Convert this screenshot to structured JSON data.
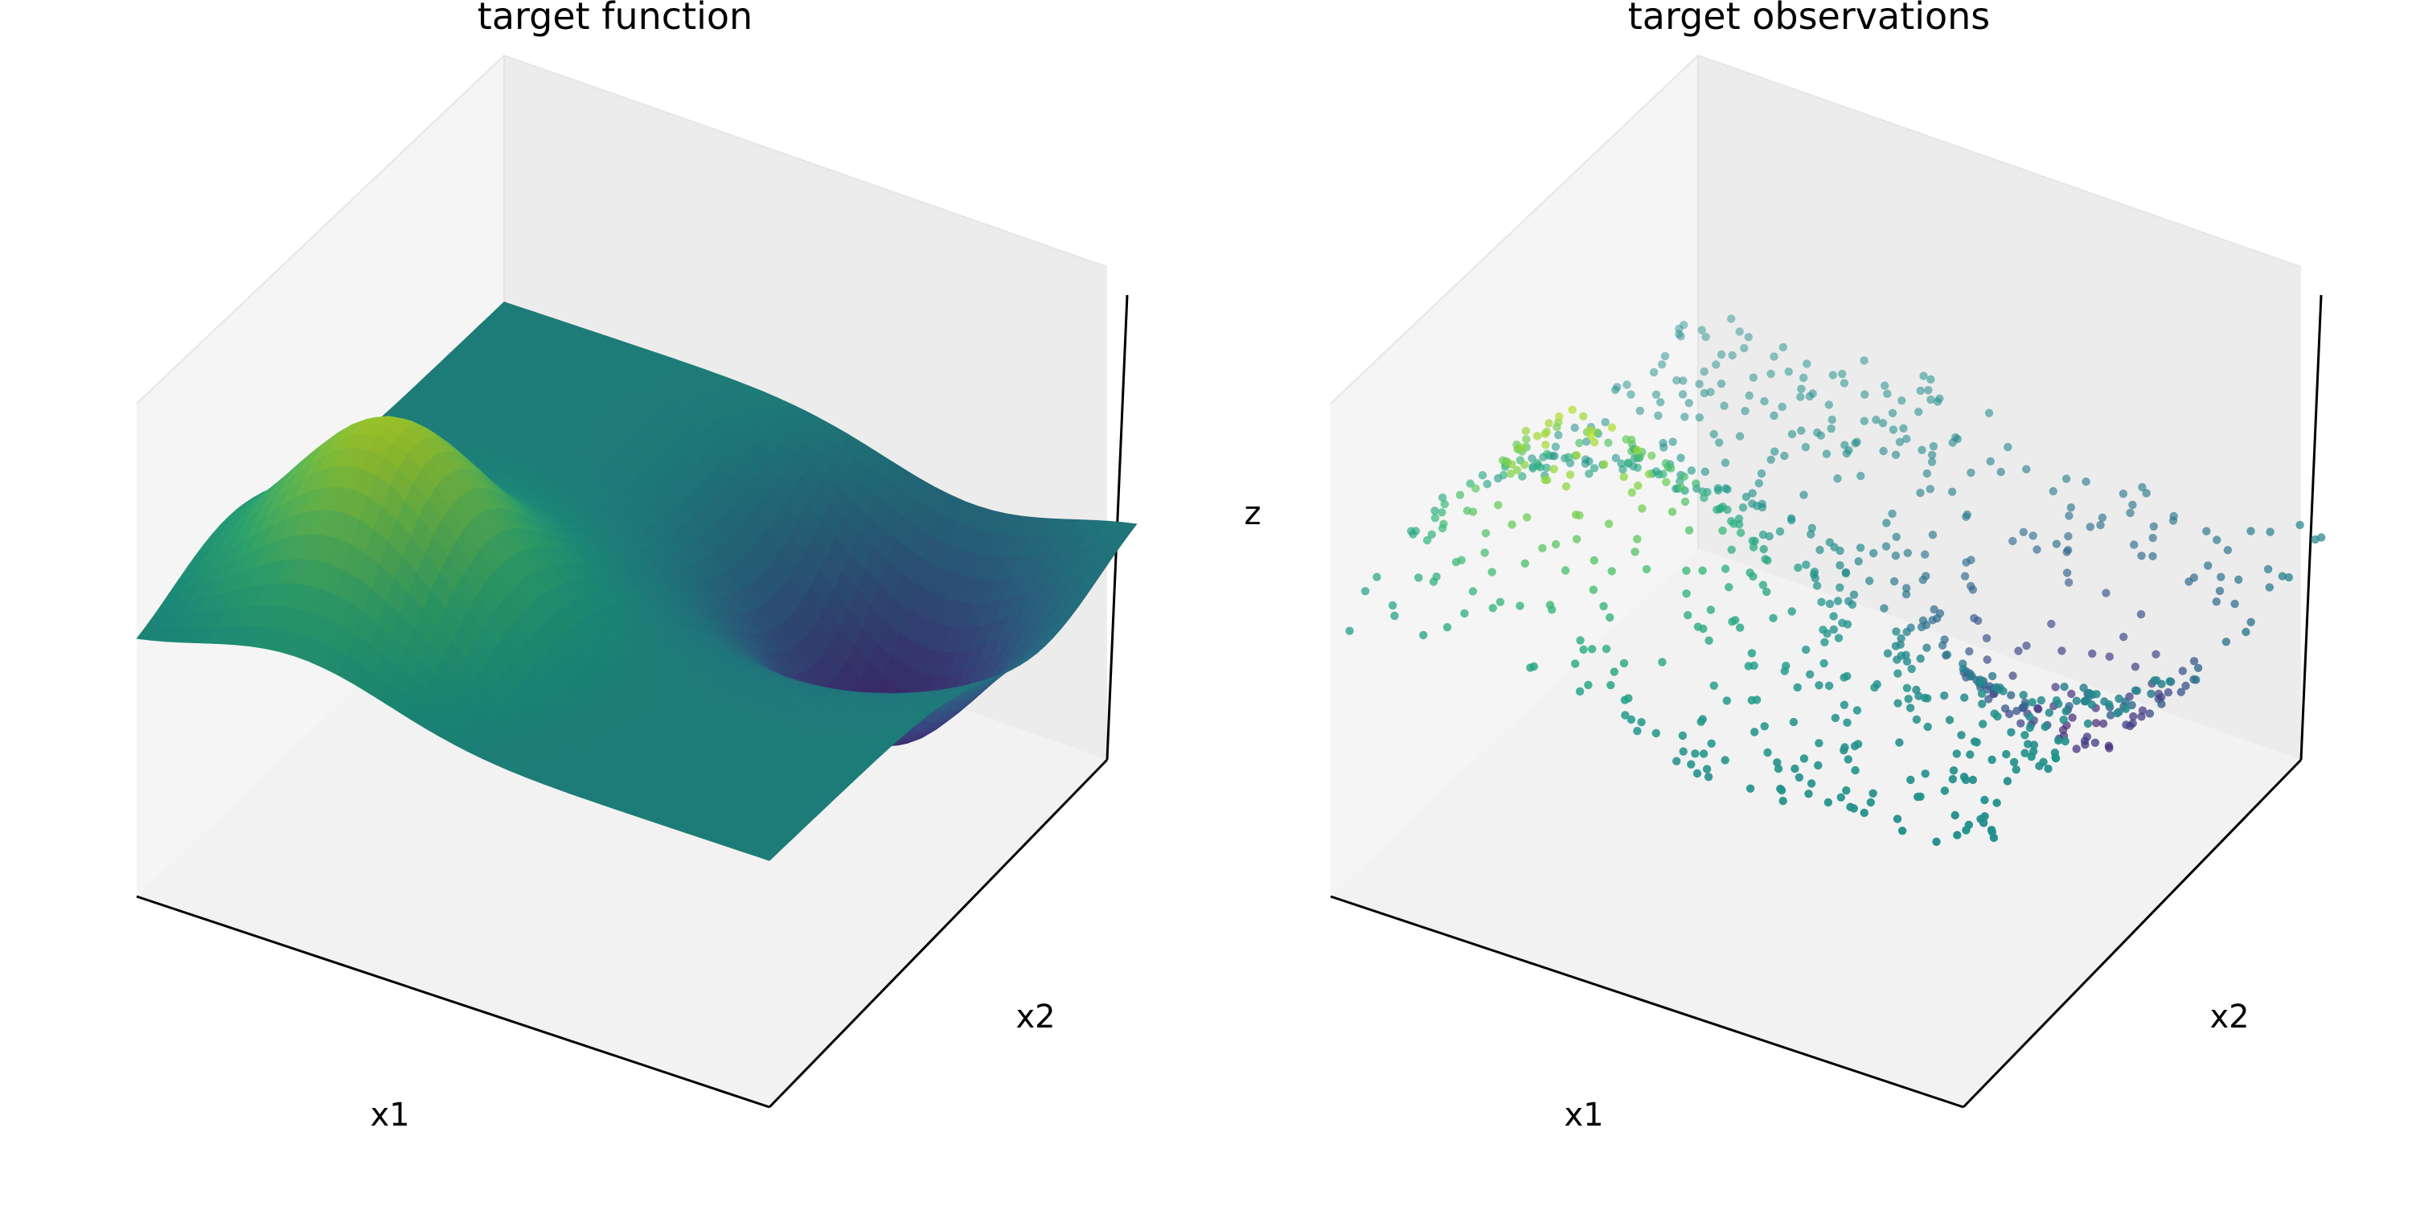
{
  "chart_data": [
    {
      "type": "surface",
      "title": "target function",
      "xlabel": "x1",
      "ylabel": "x2",
      "zlabel": "",
      "x_range": [
        -3,
        3
      ],
      "y_range": [
        -3,
        3
      ],
      "z_range": [
        -1.3,
        1.3
      ],
      "colormap": "viridis",
      "ticks": "hidden",
      "grid": false,
      "surface_features": [
        {
          "kind": "peak",
          "x1": -1.5,
          "x2": -1.5,
          "z": 1.0
        },
        {
          "kind": "trough",
          "x1": 1.5,
          "x2": 1.5,
          "z": -1.0
        }
      ]
    },
    {
      "type": "scatter",
      "title": "target observations",
      "xlabel": "x1",
      "ylabel": "x2",
      "zlabel": "z",
      "x_range": [
        -3,
        3
      ],
      "y_range": [
        -3,
        3
      ],
      "z_range": [
        -1.3,
        1.3
      ],
      "colormap": "viridis",
      "ticks": "hidden",
      "grid": false,
      "n_points": 800
    }
  ],
  "colors": {
    "pane_left": "#f5f5f5",
    "pane_right": "#ececec",
    "pane_bottom": "#f2f2f2",
    "axis_line": "#000000"
  }
}
